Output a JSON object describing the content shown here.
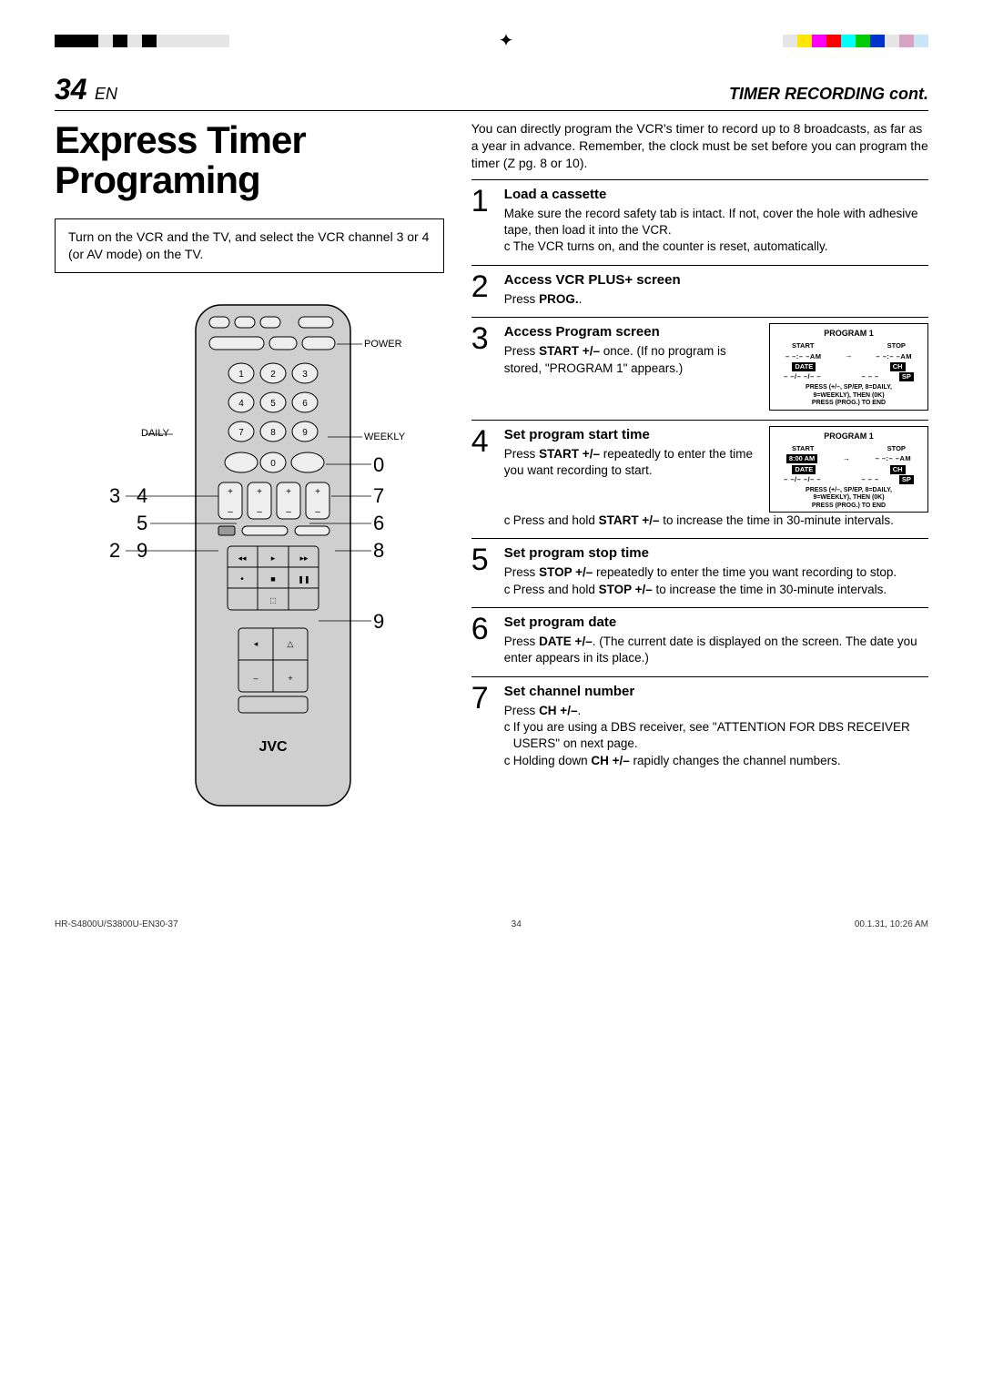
{
  "reg_bars": {
    "left": [
      "#000000",
      "#000000",
      "#000000",
      "#e5e5e5",
      "#000000",
      "#e5e5e5",
      "#000000",
      "#e5e5e5",
      "#e5e5e5",
      "#e5e5e5",
      "#e5e5e5",
      "#e5e5e5"
    ],
    "right": [
      "#e5e5e5",
      "#ffe600",
      "#ff00ff",
      "#ff0000",
      "#00ffff",
      "#00cc00",
      "#0033cc",
      "#e5e5e5",
      "#d9a3c6",
      "#c9e6f7"
    ]
  },
  "header": {
    "page_num": "34",
    "lang": "EN",
    "section": "TIMER RECORDING cont."
  },
  "main_title": "Express Timer Programing",
  "intro_box": "Turn on the VCR and the TV, and select the VCR channel 3 or 4 (or AV mode) on the TV.",
  "remote": {
    "labels": {
      "power": "POWER",
      "daily": "DAILY",
      "weekly": "WEEKLY"
    },
    "brand": "JVC",
    "callouts_left": [
      "3",
      "5",
      "2"
    ],
    "callouts_left2": [
      "4",
      "",
      "9"
    ],
    "callouts_right": [
      "0",
      "7",
      "6",
      "8",
      "9"
    ]
  },
  "intro_text": "You can directly program the VCR's timer to record up to 8 broadcasts, as far as a year in advance. Remember, the clock must be set before you can program the timer (Z pg. 8 or 10).",
  "steps": [
    {
      "n": "1",
      "title": "Load a cassette",
      "body": "Make sure the record safety tab is intact. If not, cover the hole with adhesive tape, then load it into the VCR.",
      "notes": [
        "The VCR turns on, and the counter is reset, automatically."
      ]
    },
    {
      "n": "2",
      "title": "Access VCR PLUS+ screen",
      "body": "Press <strong>PROG.</strong>."
    },
    {
      "n": "3",
      "title": "Access Program screen",
      "body": "Press <strong>START +/–</strong> once. (If no program is stored, \"PROGRAM 1\" appears.)",
      "progbox": {
        "title": "PROGRAM 1",
        "start": {
          "label": "START",
          "time": "– –:– –AM"
        },
        "stop": {
          "label": "STOP",
          "time": "– –:– –AM"
        },
        "date": {
          "label": "DATE",
          "val": "– –/– –/– –"
        },
        "ch": {
          "label": "CH",
          "val": "– – –",
          "sp": "SP"
        },
        "footer": [
          "PRESS (+/–, SP/EP, 8=DAILY,",
          "9=WEEKLY), THEN (0K)",
          "PRESS (PROG.) TO END"
        ]
      }
    },
    {
      "n": "4",
      "title": "Set program start time",
      "body": "Press <strong>START +/–</strong> repeatedly to enter the time you want recording to start.",
      "notes": [
        "Press and hold <strong>START +/–</strong> to increase the time in 30-minute intervals."
      ],
      "progbox": {
        "title": "PROGRAM 1",
        "start": {
          "label": "START",
          "time": "8:00 AM",
          "filled": true
        },
        "stop": {
          "label": "STOP",
          "time": "– –:– –AM"
        },
        "date": {
          "label": "DATE",
          "val": "– –/– –/– –"
        },
        "ch": {
          "label": "CH",
          "val": "– – –",
          "sp": "SP"
        },
        "footer": [
          "PRESS (+/–, SP/EP, 8=DAILY,",
          "9=WEEKLY), THEN (0K)",
          "PRESS (PROG.) TO END"
        ]
      }
    },
    {
      "n": "5",
      "title": "Set program stop time",
      "body": "Press <strong>STOP +/–</strong> repeatedly to enter the time you want recording to stop.",
      "notes": [
        "Press and hold <strong>STOP +/–</strong> to increase the time in 30-minute intervals."
      ]
    },
    {
      "n": "6",
      "title": "Set program date",
      "body": "Press <strong>DATE +/–</strong>. (The current date is displayed on the screen. The date you enter appears in its place.)"
    },
    {
      "n": "7",
      "title": "Set channel number",
      "body": "Press <strong>CH +/–</strong>.",
      "notes": [
        "If you are using a DBS receiver, see \"ATTENTION FOR DBS RECEIVER USERS\" on next page.",
        "Holding down <strong>CH +/–</strong> rapidly changes the channel numbers."
      ]
    }
  ],
  "footer": {
    "left": "HR-S4800U/S3800U-EN30-37",
    "mid": "34",
    "right": "00.1.31, 10:26 AM"
  }
}
